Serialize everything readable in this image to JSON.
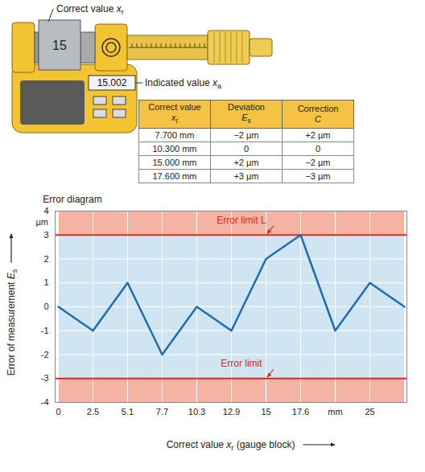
{
  "illustration": {
    "gauge_block": "15",
    "display": "15.002",
    "labels": [
      {
        "text": "Correct value",
        "symbol": "x",
        "subscript": "r"
      },
      {
        "text": "Indicated value",
        "symbol": "x",
        "subscript": "a"
      }
    ]
  },
  "table": {
    "header": [
      {
        "text": "Correct value",
        "symbol": "x",
        "subscript": "r"
      },
      {
        "text": "Deviation",
        "symbol": "E",
        "subscript": "s"
      },
      {
        "text": "Correction",
        "symbol": "C"
      }
    ],
    "rows": [
      [
        "7.700 mm",
        "−2 µm",
        "+2 µm"
      ],
      [
        "10.300 mm",
        "0",
        "0"
      ],
      [
        "15.000 mm",
        "+2 µm",
        "−2 µm"
      ],
      [
        "17.600 mm",
        "+3 µm",
        "−3 µm"
      ]
    ]
  },
  "chart_data": {
    "type": "line",
    "title": "Error diagram",
    "x_label": {
      "text": "Correct value",
      "symbol": "x",
      "subscript": "r",
      "suffix": "(gauge block)"
    },
    "y_label": {
      "text": "Error of measurement",
      "symbol": "E",
      "subscript": "s"
    },
    "categories": [
      "0",
      "2.5",
      "5.1",
      "7.7",
      "10.3",
      "12.9",
      "15",
      "17.6",
      "mm",
      "25",
      null
    ],
    "values": [
      0,
      -1,
      1,
      -2,
      0,
      -1,
      2,
      3,
      -1,
      1,
      0
    ],
    "color": "#1f6cb0",
    "ylim": [
      -4,
      4
    ],
    "yticks": [
      -4,
      -3,
      -2,
      -1,
      0,
      1,
      2,
      3,
      4
    ],
    "y_unit": "µm",
    "grid": true,
    "error_limit": 3,
    "annotations": [
      {
        "text": "Error limit L",
        "target": 3
      },
      {
        "text": "Error limit",
        "target": -3
      }
    ]
  }
}
